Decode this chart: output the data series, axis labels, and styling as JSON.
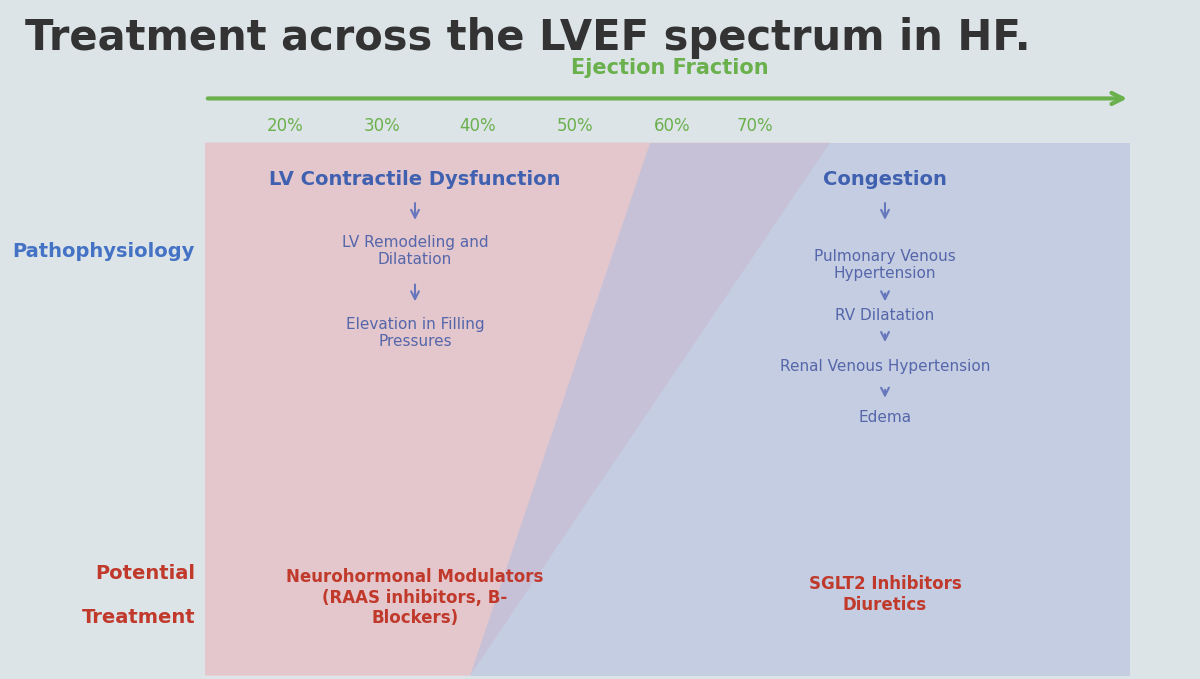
{
  "title": "Treatment across the LVEF spectrum in HF.",
  "title_color": "#333333",
  "title_fontsize": 30,
  "ejection_fraction_label": "Ejection Fraction",
  "ejection_fraction_color": "#6ab04c",
  "ef_ticks": [
    "20%",
    "30%",
    "40%",
    "50%",
    "60%",
    "70%"
  ],
  "ef_tick_color": "#6ab04c",
  "background_color": "#dde4e8",
  "left_label": "Pathophysiology",
  "left_label_color": "#4472c4",
  "left_label2": "Potential",
  "left_label3": "Treatment",
  "left_label23_color": "#c0392b",
  "pink_region_color": "#e8b4bb",
  "blue_region_color": "#b4bedd",
  "left_header": "LV Contractile Dysfunction",
  "left_header_color": "#4060b0",
  "left_items": [
    "LV Remodeling and\nDilatation",
    "Elevation in Filling\nPressures"
  ],
  "left_items_color": "#5566aa",
  "left_treatment": "Neurohormonal Modulators\n(RAAS inhibitors, B-\nBlockers)",
  "left_treatment_color": "#c0392b",
  "right_header": "Congestion",
  "right_header_color": "#4060b0",
  "right_items": [
    "Pulmonary Venous\nHypertension",
    "RV Dilatation",
    "Renal Venous Hypertension",
    "Edema"
  ],
  "right_items_color": "#5566aa",
  "right_treatment": "SGLT2 Inhibitors\nDiuretics",
  "right_treatment_color": "#c0392b",
  "arrow_color": "#6677bb"
}
